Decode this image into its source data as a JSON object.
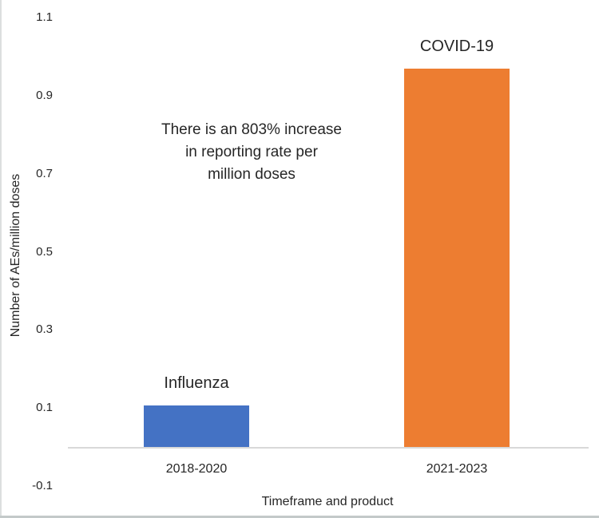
{
  "chart_data": {
    "type": "bar",
    "title": "",
    "xlabel": "Timeframe and product",
    "ylabel": "Number of AEs/million doses",
    "categories": [
      "2018-2020",
      "2021-2023"
    ],
    "values": [
      0.107,
      0.97
    ],
    "bar_labels": [
      "Influenza",
      "COVID-19"
    ],
    "bar_colors": [
      "#4472C4",
      "#ED7D31"
    ],
    "ylim": [
      -0.1,
      1.1
    ],
    "yticks": [
      1.1,
      0.9,
      0.7,
      0.5,
      0.3,
      0.1,
      -0.1
    ],
    "ytick_labels": [
      "1.1",
      "0.9",
      "0.7",
      "0.5",
      "0.3",
      "0.1",
      "-0.1"
    ],
    "grid": false,
    "legend": "none",
    "axis_line_color": "#d9d9d9",
    "text_color": "#262626",
    "annotation": {
      "text": "There is an 803% increase in reporting rate per million doses",
      "lines": [
        "There is an 803% increase",
        "in reporting rate per",
        "million doses"
      ]
    }
  }
}
